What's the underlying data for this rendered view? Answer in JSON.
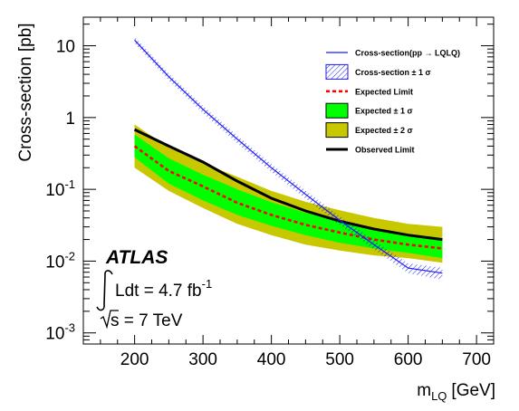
{
  "chart_data": {
    "type": "line",
    "xlabel": "m",
    "xlabel_sub": "LQ",
    "xlabel_unit": "[GeV]",
    "ylabel": "Cross-section [pb]",
    "xlim": [
      125,
      725
    ],
    "ylim": [
      0.0007,
      25
    ],
    "yscale": "log",
    "x_ticks": [
      200,
      300,
      400,
      500,
      600,
      700
    ],
    "y_ticks": [
      {
        "value": 10,
        "base": "10",
        "exp": ""
      },
      {
        "value": 1,
        "base": "1",
        "exp": ""
      },
      {
        "value": 0.1,
        "base": "10",
        "exp": "-1"
      },
      {
        "value": 0.01,
        "base": "10",
        "exp": "-2"
      },
      {
        "value": 0.001,
        "base": "10",
        "exp": "-3"
      }
    ],
    "grid": false,
    "legend_position": "top-right",
    "x": [
      200,
      250,
      300,
      350,
      400,
      450,
      500,
      550,
      600,
      650
    ],
    "series": [
      {
        "name": "Cross-section(pp → LQLQ)",
        "style": "line",
        "color": "#1a1aff",
        "x": [
          200,
          250,
          300,
          350,
          400,
          450,
          500,
          550,
          600,
          650
        ],
        "values": [
          12,
          3.7,
          1.3,
          0.5,
          0.2,
          0.085,
          0.037,
          0.017,
          0.008,
          0.0068
        ]
      },
      {
        "name": "Cross-section ± 1 σ",
        "style": "hatched-band",
        "color": "#1a1aff",
        "x": [
          200,
          250,
          300,
          350,
          400,
          450,
          500,
          550,
          600,
          650
        ],
        "lower": [
          10.8,
          3.3,
          1.15,
          0.44,
          0.175,
          0.074,
          0.032,
          0.0145,
          0.0068,
          0.0055
        ],
        "upper": [
          13.3,
          4.1,
          1.45,
          0.56,
          0.225,
          0.096,
          0.042,
          0.0195,
          0.0093,
          0.0081
        ]
      },
      {
        "name": "Expected Limit",
        "style": "dashed",
        "color": "#ff0000",
        "x": [
          200,
          250,
          300,
          350,
          400,
          450,
          500,
          550,
          600,
          650
        ],
        "values": [
          0.4,
          0.18,
          0.11,
          0.065,
          0.044,
          0.032,
          0.025,
          0.02,
          0.017,
          0.015
        ]
      },
      {
        "name": "Expected ± 1 σ",
        "style": "band",
        "color": "#00ff00",
        "x": [
          200,
          250,
          300,
          350,
          400,
          450,
          500,
          550,
          600,
          650
        ],
        "lower": [
          0.28,
          0.12,
          0.07,
          0.044,
          0.031,
          0.023,
          0.018,
          0.015,
          0.013,
          0.011
        ],
        "upper": [
          0.58,
          0.27,
          0.16,
          0.1,
          0.066,
          0.047,
          0.037,
          0.029,
          0.024,
          0.021
        ]
      },
      {
        "name": "Expected ± 2 σ",
        "style": "band",
        "color": "#c8c800",
        "x": [
          200,
          250,
          300,
          350,
          400,
          450,
          500,
          550,
          600,
          650
        ],
        "lower": [
          0.2,
          0.095,
          0.055,
          0.033,
          0.023,
          0.017,
          0.014,
          0.012,
          0.011,
          0.0095
        ],
        "upper": [
          0.8,
          0.38,
          0.23,
          0.15,
          0.095,
          0.067,
          0.051,
          0.04,
          0.033,
          0.03
        ]
      },
      {
        "name": "Observed Limit",
        "style": "line",
        "color": "#000000",
        "x": [
          200,
          250,
          300,
          350,
          400,
          450,
          500,
          550,
          600,
          650
        ],
        "values": [
          0.68,
          0.4,
          0.24,
          0.13,
          0.075,
          0.05,
          0.036,
          0.028,
          0.023,
          0.02
        ]
      }
    ],
    "legend": [
      {
        "label": "Cross-section(pp → LQLQ)",
        "kind": "line",
        "color": "#1a1aff"
      },
      {
        "label": "Cross-section ± 1 σ",
        "kind": "hatched-box",
        "color": "#1a1aff"
      },
      {
        "label": "Expected Limit",
        "kind": "dashed",
        "color": "#ff0000"
      },
      {
        "label": "Expected ± 1 σ",
        "kind": "box",
        "color": "#00ff00"
      },
      {
        "label": "Expected ± 2 σ",
        "kind": "box",
        "color": "#c8c800"
      },
      {
        "label": "Observed Limit",
        "kind": "thick-line",
        "color": "#000000"
      }
    ],
    "annotations": {
      "experiment": "ATLAS",
      "luminosity_prefix": "Ldt = 4.7 fb",
      "luminosity_exp": "-1",
      "energy": "s = 7 TeV"
    }
  }
}
